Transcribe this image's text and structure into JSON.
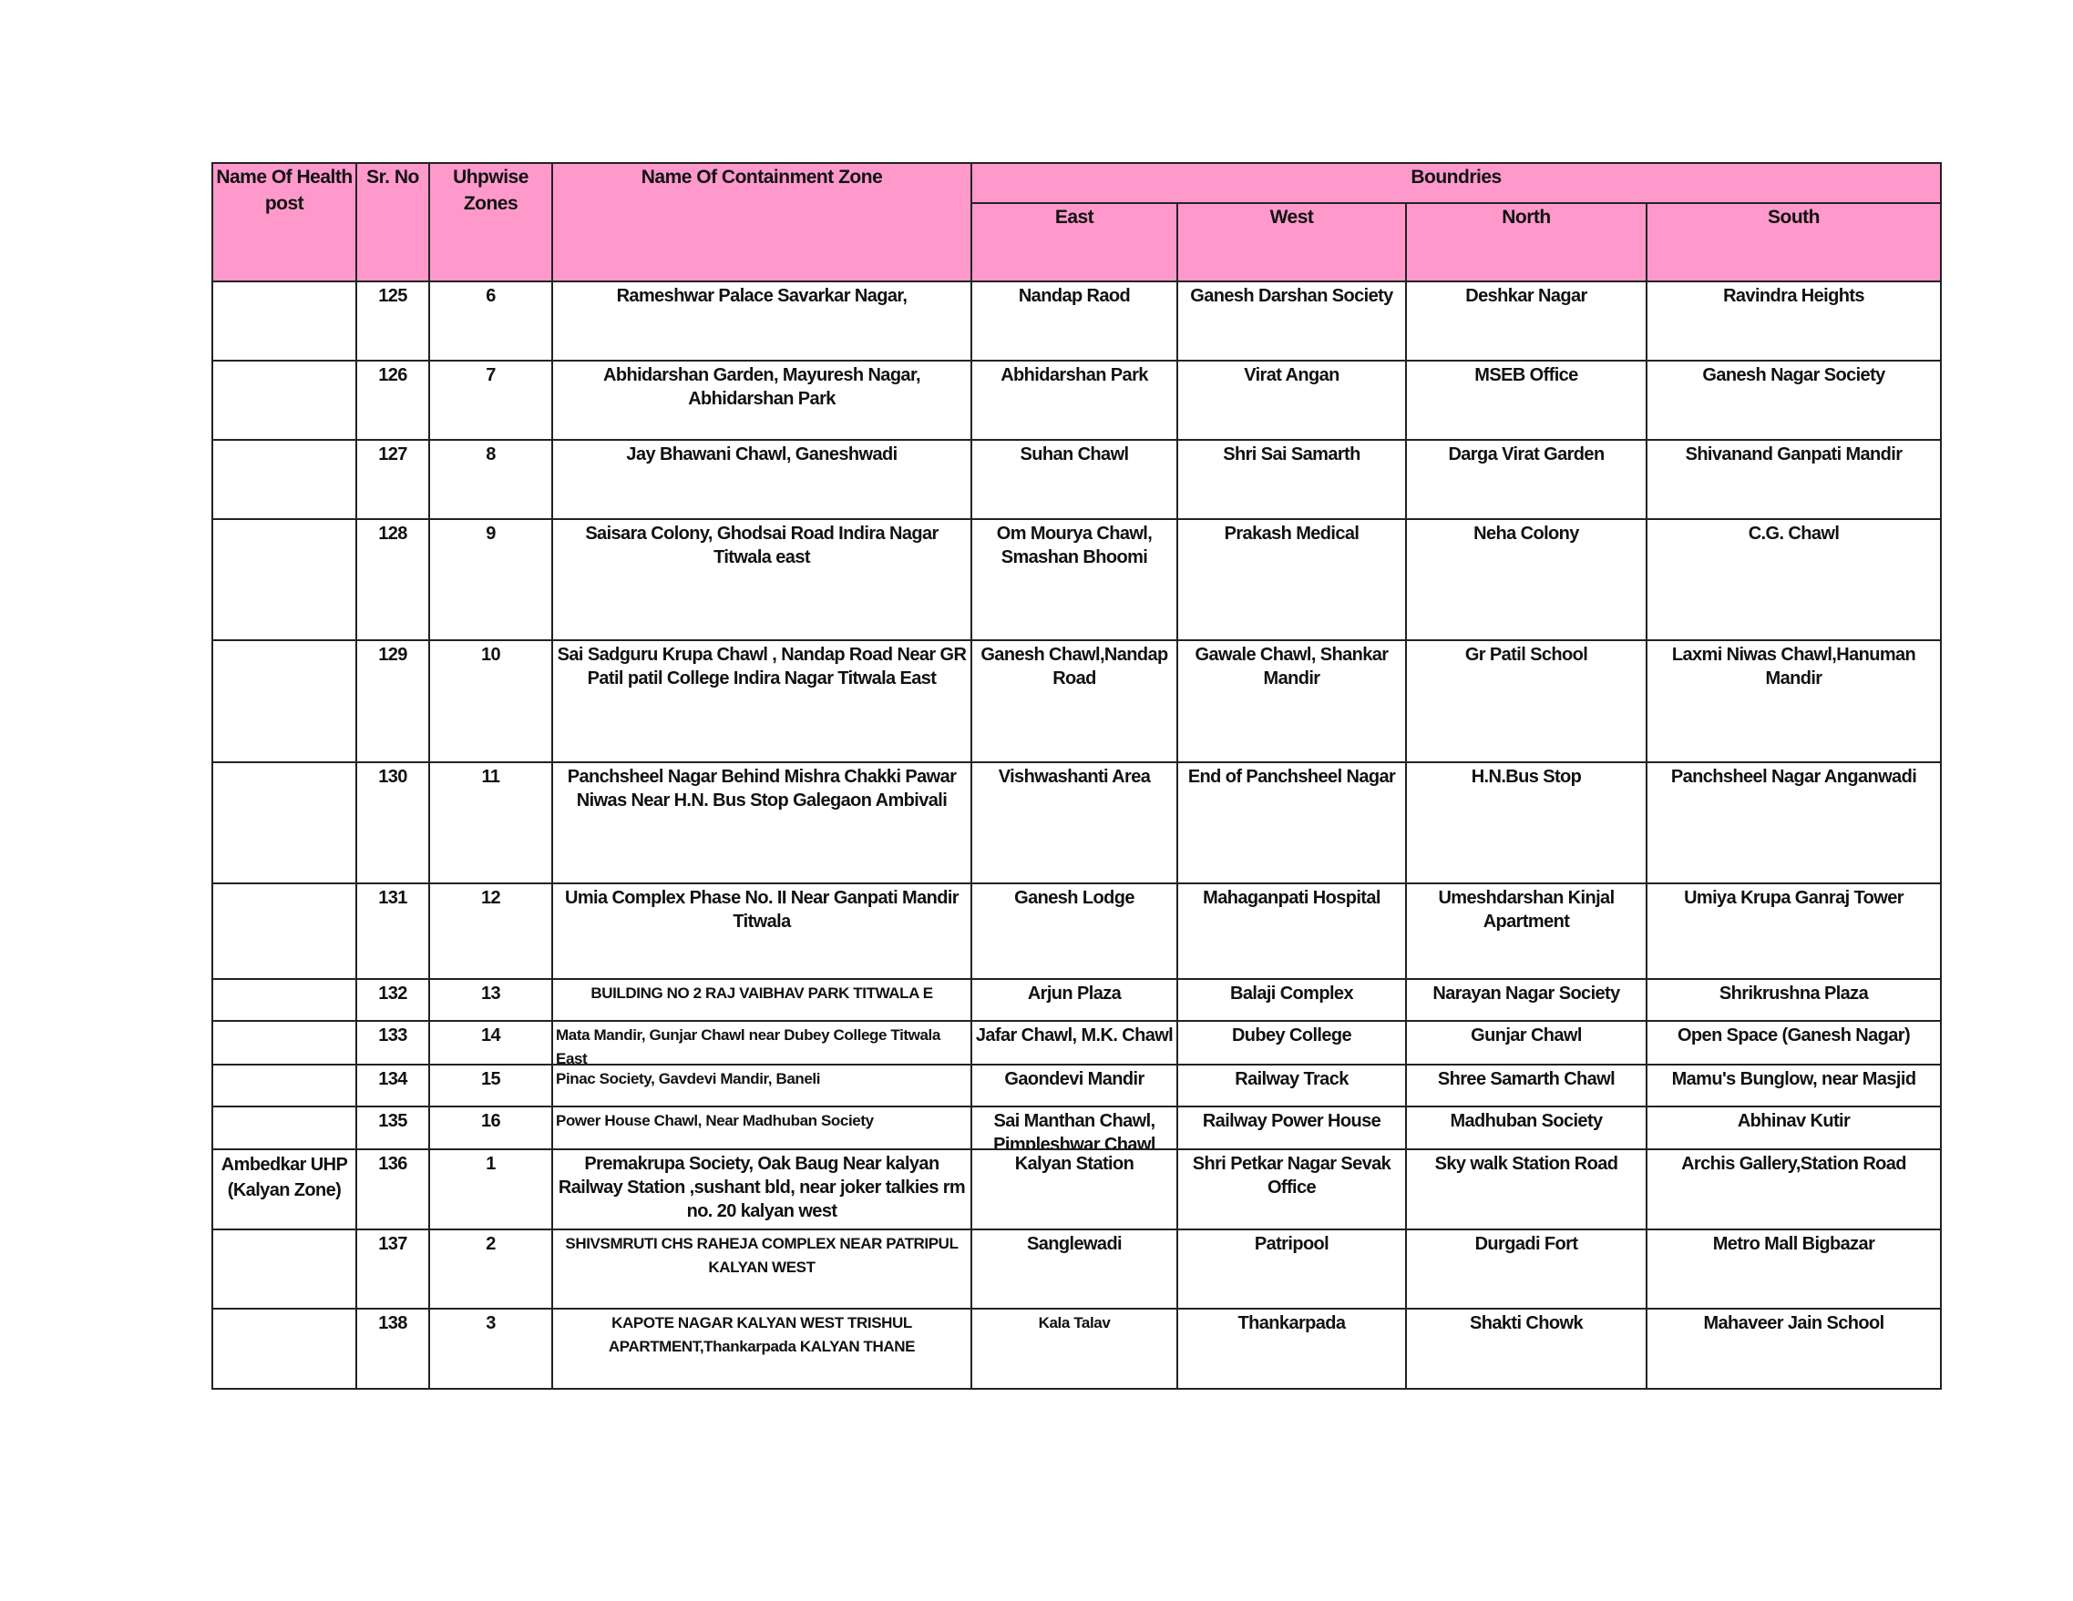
{
  "header": {
    "health_post": "Name Of Health post",
    "sr_no": "Sr. No",
    "uhp_zones": "Uhpwise Zones",
    "containment_zone": "Name Of Containment Zone",
    "boundries": "Boundries",
    "east": "East",
    "west": "West",
    "north": "North",
    "south": "South"
  },
  "header_color": "#ff99cc",
  "rows": [
    {
      "health_post": "",
      "sr_no": "125",
      "zone": "6",
      "name": "Rameshwar Palace Savarkar Nagar,",
      "east": "Nandap Raod",
      "west": "Ganesh Darshan Society",
      "north": "Deshkar Nagar",
      "south": "Ravindra Heights"
    },
    {
      "health_post": "",
      "sr_no": "126",
      "zone": "7",
      "name": "Abhidarshan Garden, Mayuresh Nagar, Abhidarshan Park",
      "east": "Abhidarshan Park",
      "west": "Virat Angan",
      "north": "MSEB Office",
      "south": "Ganesh Nagar Society"
    },
    {
      "health_post": "",
      "sr_no": "127",
      "zone": "8",
      "name": "Jay Bhawani Chawl, Ganeshwadi",
      "east": "Suhan Chawl",
      "west": "Shri Sai Samarth",
      "north": "Darga Virat Garden",
      "south": "Shivanand Ganpati Mandir"
    },
    {
      "health_post": "",
      "sr_no": "128",
      "zone": "9",
      "name": "Saisara Colony, Ghodsai Road Indira Nagar Titwala east",
      "east": "Om Mourya Chawl, Smashan Bhoomi",
      "west": "Prakash Medical",
      "north": "Neha Colony",
      "south": "C.G. Chawl"
    },
    {
      "health_post": "",
      "sr_no": "129",
      "zone": "10",
      "name": "Sai Sadguru Krupa Chawl , Nandap Road Near GR Patil patil College Indira Nagar Titwala East",
      "east": "Ganesh Chawl,Nandap Road",
      "west": "Gawale Chawl, Shankar Mandir",
      "north": "Gr Patil School",
      "south": "Laxmi Niwas Chawl,Hanuman Mandir"
    },
    {
      "health_post": "",
      "sr_no": "130",
      "zone": "11",
      "name": "Panchsheel Nagar Behind Mishra Chakki Pawar Niwas Near H.N. Bus Stop Galegaon Ambivali",
      "east": "Vishwashanti Area",
      "west": "End of Panchsheel Nagar",
      "north": "H.N.Bus Stop",
      "south": "Panchsheel Nagar Anganwadi"
    },
    {
      "health_post": "",
      "sr_no": "131",
      "zone": "12",
      "name": "Umia Complex Phase No. II Near Ganpati Mandir Titwala",
      "east": "Ganesh Lodge",
      "west": "Mahaganpati Hospital",
      "north": "Umeshdarshan Kinjal Apartment",
      "south": "Umiya Krupa Ganraj Tower"
    },
    {
      "health_post": "",
      "sr_no": "132",
      "zone": "13",
      "name": "BUILDING NO 2  RAJ VAIBHAV PARK  TITWALA  E",
      "east": "Arjun Plaza",
      "west": "Balaji Complex",
      "north": "Narayan Nagar Society",
      "south": "Shrikrushna Plaza"
    },
    {
      "health_post": "",
      "sr_no": "133",
      "zone": "14",
      "name": "Mata Mandir, Gunjar Chawl near Dubey College Titwala East",
      "east": "Jafar Chawl, M.K. Chawl",
      "west": "Dubey College",
      "north": "Gunjar Chawl",
      "south": "Open Space (Ganesh Nagar)"
    },
    {
      "health_post": "",
      "sr_no": "134",
      "zone": "15",
      "name": "Pinac Society, Gavdevi Mandir, Baneli",
      "east": "Gaondevi Mandir",
      "west": "Railway Track",
      "north": "Shree Samarth Chawl",
      "south": "Mamu's Bunglow, near Masjid"
    },
    {
      "health_post": "",
      "sr_no": "135",
      "zone": "16",
      "name": "Power House Chawl, Near Madhuban Society",
      "east": "Sai Manthan Chawl, Pimpleshwar Chawl",
      "west": "Railway Power House",
      "north": "Madhuban Society",
      "south": "Abhinav Kutir"
    },
    {
      "health_post": "Ambedkar UHP (Kalyan Zone)",
      "sr_no": "136",
      "zone": "1",
      "name": "Premakrupa Society, Oak Baug Near kalyan Railway Station ,sushant bld, near joker talkies rm no. 20 kalyan west",
      "east": "Kalyan Station",
      "west": "Shri Petkar Nagar Sevak Office",
      "north": "Sky walk Station Road",
      "south": "Archis Gallery,Station Road"
    },
    {
      "health_post": "",
      "sr_no": "137",
      "zone": "2",
      "name": "SHIVSMRUTI CHS  RAHEJA COMPLEX  NEAR PATRIPUL  KALYAN WEST",
      "east": "Sanglewadi",
      "west": "Patripool",
      "north": "Durgadi Fort",
      "south": "Metro Mall Bigbazar"
    },
    {
      "health_post": "",
      "sr_no": "138",
      "zone": "3",
      "name": "KAPOTE NAGAR  KALYAN WEST   TRISHUL APARTMENT,Thankarpada  KALYAN   THANE",
      "east": "Kala Talav",
      "west": "Thankarpada",
      "north": "Shakti Chowk",
      "south": "Mahaveer Jain School"
    }
  ]
}
